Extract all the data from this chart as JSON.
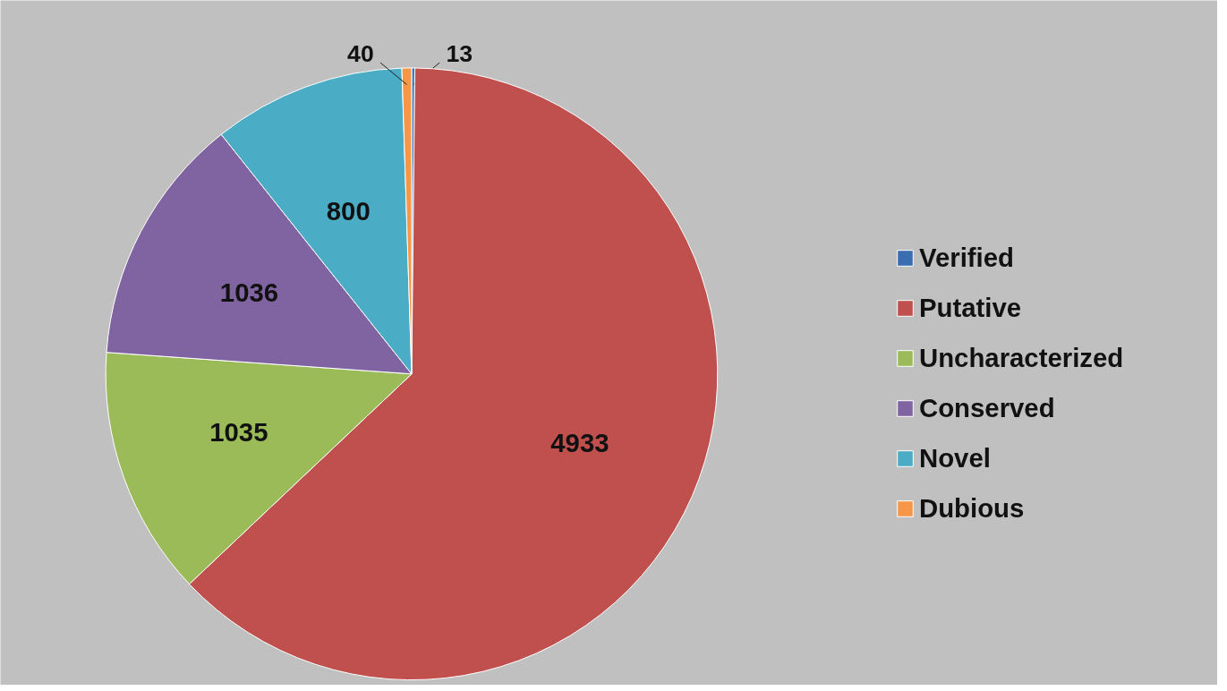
{
  "chart_data": {
    "type": "pie",
    "categories": [
      "Verified",
      "Putative",
      "Uncharacterized",
      "Conserved",
      "Novel",
      "Dubious"
    ],
    "values": [
      13,
      4933,
      1035,
      1036,
      800,
      40
    ],
    "colors": [
      "#3b6db3",
      "#c0504d",
      "#9bbb59",
      "#8064a2",
      "#4bacc6",
      "#f79646"
    ],
    "data_labels": true,
    "legend": "right"
  }
}
